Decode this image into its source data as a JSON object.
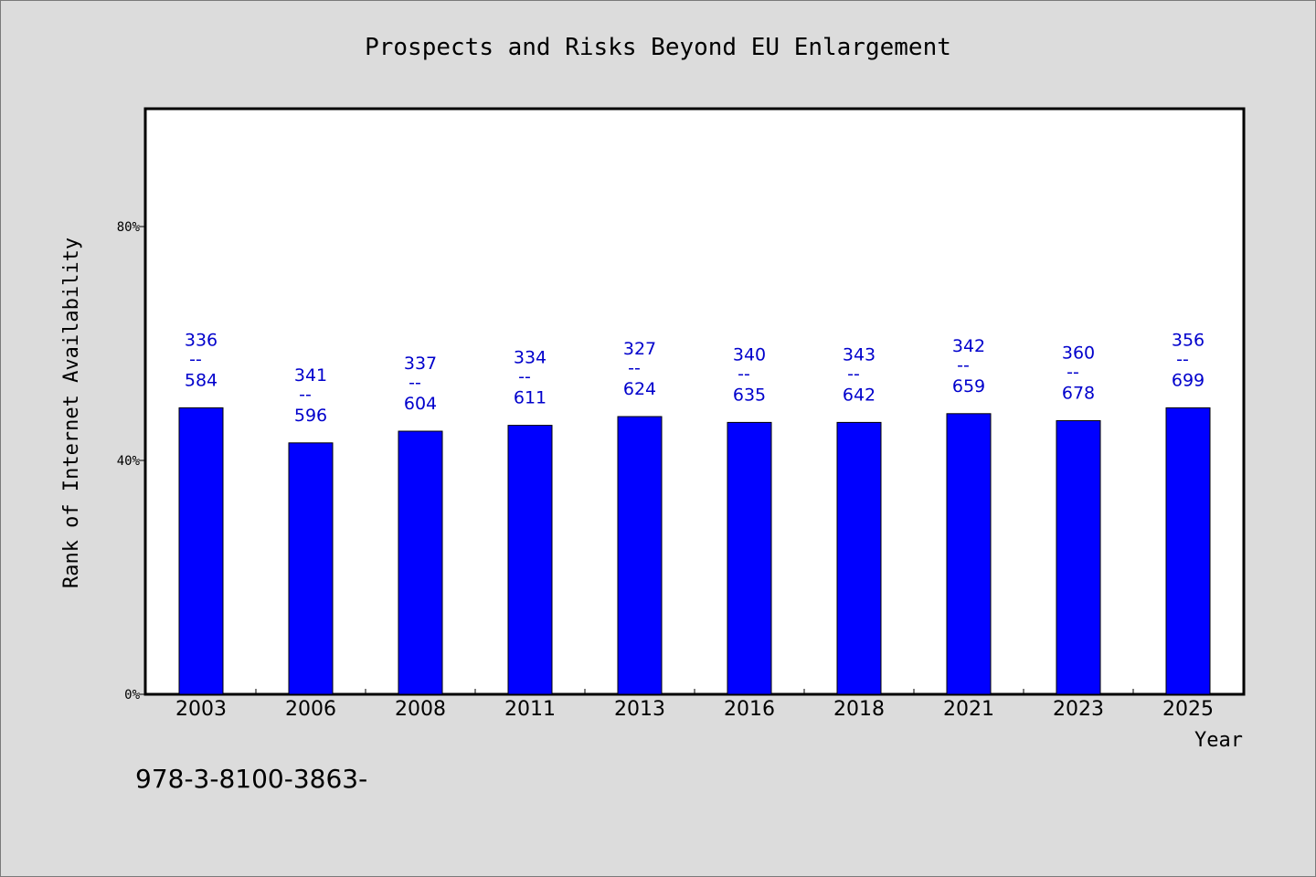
{
  "chart_data": {
    "type": "bar",
    "title": "Prospects and Risks Beyond EU Enlargement",
    "xlabel": "Year",
    "ylabel": "Rank of Internet Availability",
    "categories": [
      "2003",
      "2006",
      "2008",
      "2011",
      "2013",
      "2016",
      "2018",
      "2021",
      "2023",
      "2025"
    ],
    "values": [
      0.49,
      0.43,
      0.45,
      0.46,
      0.475,
      0.465,
      0.465,
      0.48,
      0.468,
      0.49
    ],
    "data_labels": [
      {
        "top": "336",
        "sep": "--",
        "bottom": "584"
      },
      {
        "top": "341",
        "sep": "--",
        "bottom": "596"
      },
      {
        "top": "337",
        "sep": "--",
        "bottom": "604"
      },
      {
        "top": "334",
        "sep": "--",
        "bottom": "611"
      },
      {
        "top": "327",
        "sep": "--",
        "bottom": "624"
      },
      {
        "top": "340",
        "sep": "--",
        "bottom": "635"
      },
      {
        "top": "343",
        "sep": "--",
        "bottom": "642"
      },
      {
        "top": "342",
        "sep": "--",
        "bottom": "659"
      },
      {
        "top": "360",
        "sep": "--",
        "bottom": "678"
      },
      {
        "top": "356",
        "sep": "--",
        "bottom": "699"
      }
    ],
    "yticks": [
      {
        "value": 0,
        "label": "0%"
      },
      {
        "value": 0.4,
        "label": "40%"
      },
      {
        "value": 0.8,
        "label": "80%"
      }
    ],
    "ylim": [
      0,
      1.0
    ],
    "grid": false,
    "bar_color": "#0000ff",
    "label_color": "#0000cc"
  },
  "footer": {
    "text": "978-3-8100-3863-"
  }
}
